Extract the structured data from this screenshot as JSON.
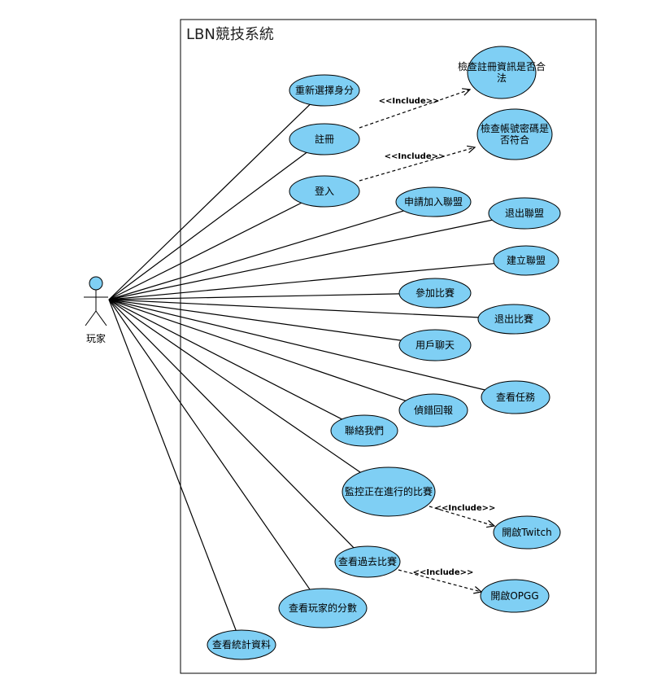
{
  "system": {
    "title": "LBN競技系統"
  },
  "actor": {
    "name": "玩家"
  },
  "colors": {
    "usecase_fill": "#7fcff4",
    "stroke": "#000000"
  },
  "use_cases": {
    "reselect_identity": [
      "重新選擇身分"
    ],
    "register": [
      "註冊"
    ],
    "login": [
      "登入"
    ],
    "apply_join_alliance": [
      "申請加入聯盟"
    ],
    "leave_alliance": [
      "退出聯盟"
    ],
    "create_alliance": [
      "建立聯盟"
    ],
    "join_match": [
      "參加比賽"
    ],
    "leave_match": [
      "退出比賽"
    ],
    "user_chat": [
      "用戶聊天"
    ],
    "view_tasks": [
      "查看任務"
    ],
    "report_bug": [
      "偵錯回報"
    ],
    "contact_us": [
      "聯絡我們"
    ],
    "monitor_live_match": [
      "監控正在進行的比賽"
    ],
    "view_past_matches": [
      "查看過去比賽"
    ],
    "view_player_scores": [
      "查看玩家的分數"
    ],
    "view_statistics": [
      "查看統計資料"
    ],
    "check_register_info": [
      "檢查註冊資訊是否合",
      "法"
    ],
    "check_account_password": [
      "檢查帳號密碼是",
      "否符合"
    ],
    "open_twitch": [
      "開啟Twitch"
    ],
    "open_opgg": [
      "開啟OPGG"
    ]
  },
  "include_label": "<<Include>>"
}
